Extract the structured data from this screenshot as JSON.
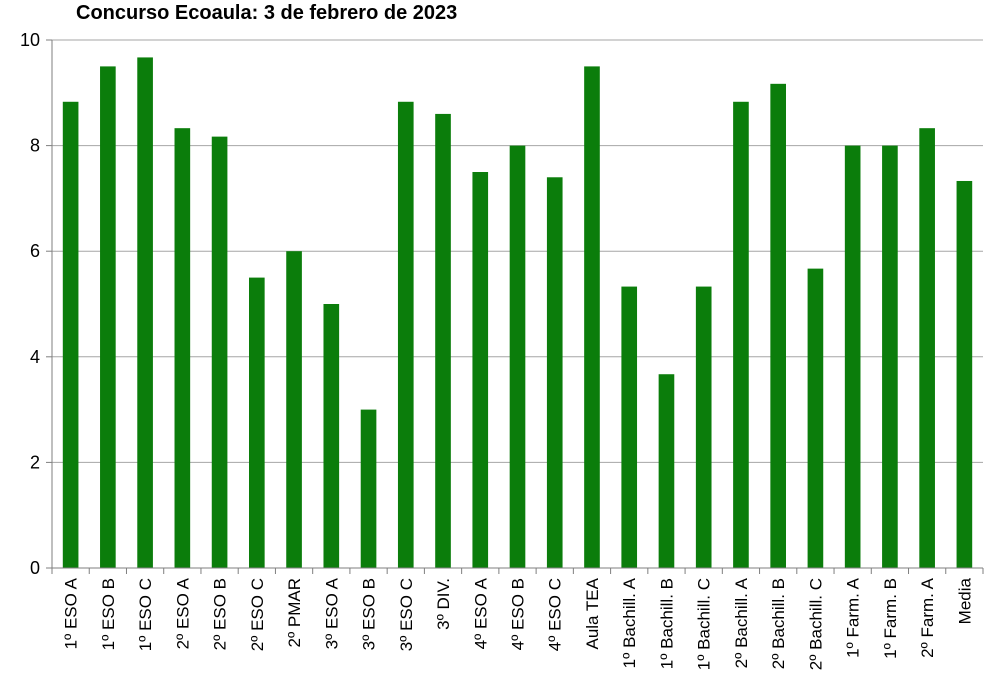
{
  "chart_data": {
    "type": "bar",
    "title": "Concurso Ecoaula: 3 de febrero de 2023",
    "xlabel": "",
    "ylabel": "",
    "ylim": [
      0,
      10
    ],
    "yticks": [
      0,
      2,
      4,
      6,
      8,
      10
    ],
    "grid": true,
    "legend": "none",
    "bar_color": "#0b7d0b",
    "categories": [
      "1º ESO A",
      "1º ESO B",
      "1º ESO C",
      "2º ESO A",
      "2º ESO B",
      "2º ESO C",
      "2º PMAR",
      "3º ESO A",
      "3º ESO B",
      "3º ESO C",
      "3º DIV.",
      "4º ESO A",
      "4º ESO B",
      "4º ESO C",
      "Aula TEA",
      "1º Bachill. A",
      "1º Bachill. B",
      "1º Bachill. C",
      "2º Bachill. A",
      "2º Bachill. B",
      "2º Bachill. C",
      "1º Farm. A",
      "1º Farm. B",
      "2º Farm. A",
      "Media"
    ],
    "values": [
      8.83,
      9.5,
      9.67,
      8.33,
      8.17,
      5.5,
      6.0,
      5.0,
      3.0,
      8.83,
      8.6,
      7.5,
      8.0,
      7.4,
      9.5,
      5.33,
      3.67,
      5.33,
      8.83,
      9.17,
      5.67,
      8.0,
      8.0,
      8.33,
      7.33
    ]
  }
}
